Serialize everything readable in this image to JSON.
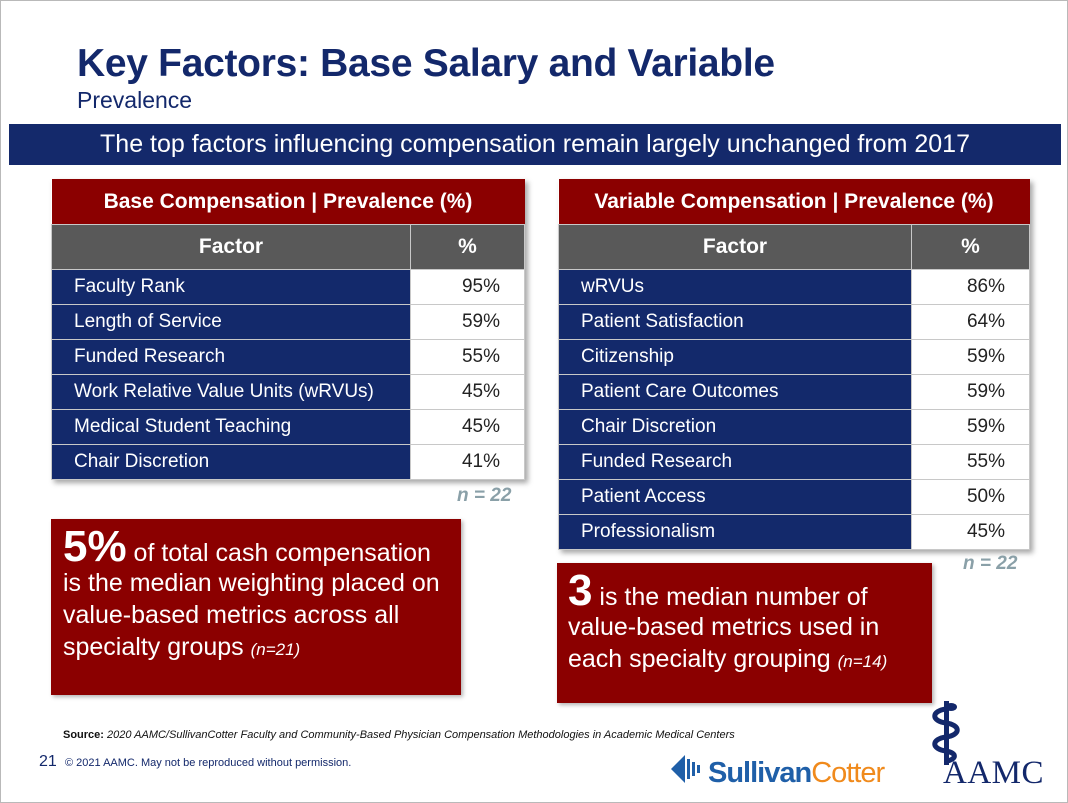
{
  "header": {
    "title": "Key Factors: Base Salary and Variable",
    "subtitle": "Prevalence"
  },
  "banner": "The top factors influencing compensation remain largely unchanged from 2017",
  "base_table": {
    "title": "Base Compensation | Prevalence (%)",
    "col_factor": "Factor",
    "col_pct": "%",
    "rows": [
      {
        "factor": "Faculty Rank",
        "pct": "95%"
      },
      {
        "factor": "Length of Service",
        "pct": "59%"
      },
      {
        "factor": "Funded Research",
        "pct": "55%"
      },
      {
        "factor": "Work Relative Value Units (wRVUs)",
        "pct": "45%"
      },
      {
        "factor": "Medical Student Teaching",
        "pct": "45%"
      },
      {
        "factor": "Chair Discretion",
        "pct": "41%"
      }
    ],
    "n": "n = 22"
  },
  "variable_table": {
    "title": "Variable Compensation | Prevalence (%)",
    "col_factor": "Factor",
    "col_pct": "%",
    "rows": [
      {
        "factor": "wRVUs",
        "pct": "86%"
      },
      {
        "factor": "Patient Satisfaction",
        "pct": "64%"
      },
      {
        "factor": "Citizenship",
        "pct": "59%"
      },
      {
        "factor": "Patient Care Outcomes",
        "pct": "59%"
      },
      {
        "factor": "Chair Discretion",
        "pct": "59%"
      },
      {
        "factor": "Funded Research",
        "pct": "55%"
      },
      {
        "factor": "Patient Access",
        "pct": "50%"
      },
      {
        "factor": "Professionalism",
        "pct": "45%"
      }
    ],
    "n": "n = 22"
  },
  "callout_left": {
    "big": "5%",
    "text1": " of total cash compensation",
    "text2": "is the median weighting placed on value-based metrics across all specialty groups",
    "note": "(n=21)"
  },
  "callout_right": {
    "big": "3",
    "text1": " is the median number of",
    "text2": "value-based metrics used in each specialty grouping",
    "note": "(n=14)"
  },
  "footer": {
    "source_label": "Source:",
    "source_text": "2020 AAMC/SullivanCotter Faculty and Community-Based Physician Compensation Methodologies in Academic Medical Centers",
    "page_number": "21",
    "copyright": "© 2021 AAMC. May not be reproduced without permission."
  },
  "logos": {
    "sullivan_part1": "Sullivan",
    "sullivan_part2": "Cotter",
    "aamc": "AAMC"
  },
  "colors": {
    "navy": "#13296b",
    "dark_red": "#8b0000",
    "header_gray": "#595959",
    "n_gray": "#8aa0a8"
  }
}
